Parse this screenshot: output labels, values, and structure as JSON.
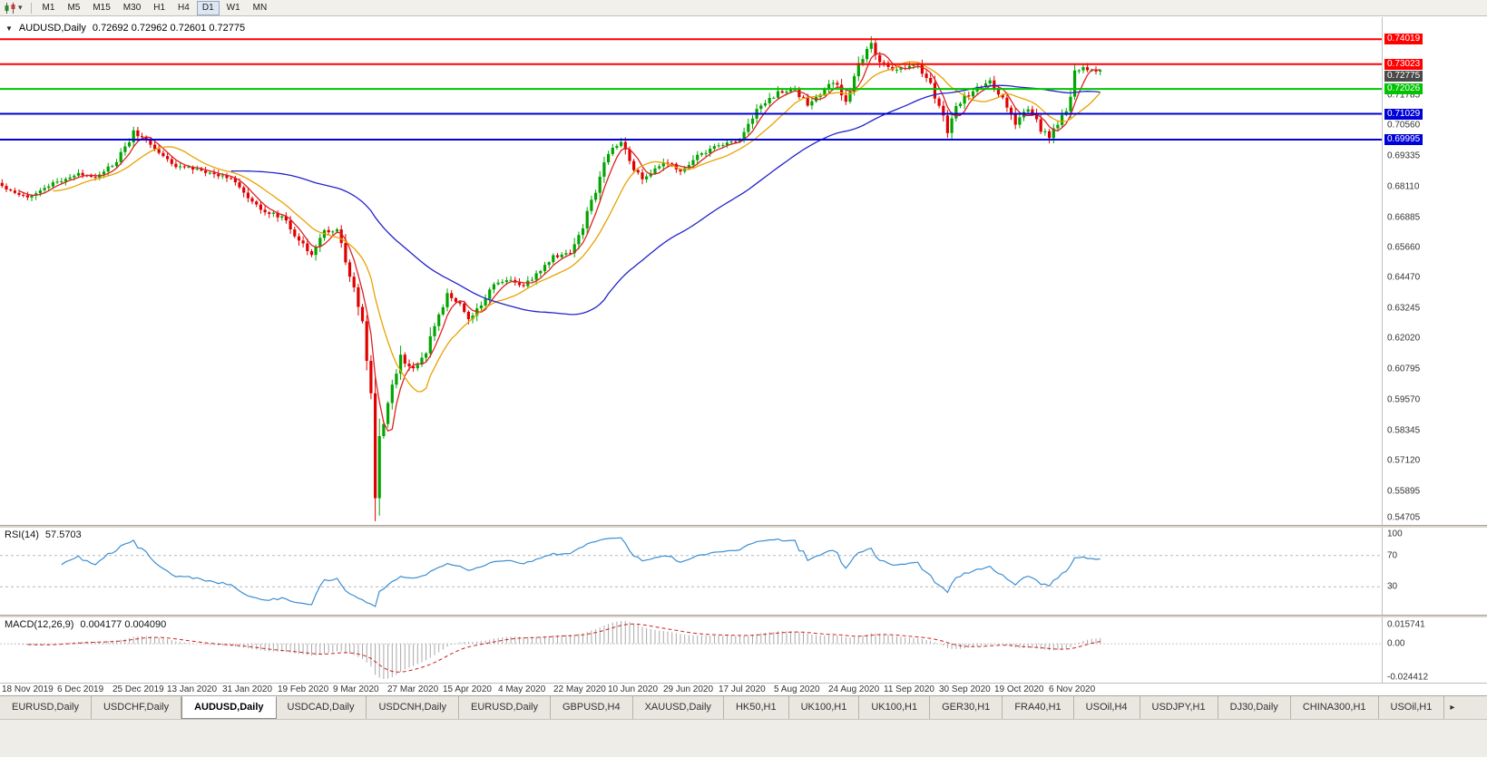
{
  "toolbar": {
    "timeframes": [
      "M1",
      "M5",
      "M15",
      "M30",
      "H1",
      "H4",
      "D1",
      "W1",
      "MN"
    ],
    "active_timeframe": "D1"
  },
  "main_chart": {
    "title_symbol": "AUDUSD,Daily",
    "title_ohlc": "0.72692 0.72962 0.72601 0.72775",
    "y_axis_labels": [
      "0.71785",
      "0.70560",
      "0.69335",
      "0.68110",
      "0.66885",
      "0.65660",
      "0.64470",
      "0.63245",
      "0.62020",
      "0.60795",
      "0.59570",
      "0.58345",
      "0.57120",
      "0.55895",
      "0.54705"
    ],
    "levels": [
      {
        "price": "0.74019",
        "value": 0.74019,
        "color": "#ff0000"
      },
      {
        "price": "0.73023",
        "value": 0.73023,
        "color": "#ff0000"
      },
      {
        "price": "0.72026",
        "value": 0.72026,
        "color": "#00c400"
      },
      {
        "price": "0.71029",
        "value": 0.71029,
        "color": "#0000d8"
      },
      {
        "price": "0.69995",
        "value": 0.69995,
        "color": "#0000d8"
      }
    ],
    "current_price": {
      "label": "0.72775",
      "value": 0.72775,
      "tag_color": "#4a4a4a"
    },
    "x_axis_labels": [
      "18 Nov 2019",
      "6 Dec 2019",
      "25 Dec 2019",
      "13 Jan 2020",
      "31 Jan 2020",
      "19 Feb 2020",
      "9 Mar 2020",
      "27 Mar 2020",
      "15 Apr 2020",
      "4 May 2020",
      "22 May 2020",
      "10 Jun 2020",
      "29 Jun 2020",
      "17 Jul 2020",
      "5 Aug 2020",
      "24 Aug 2020",
      "11 Sep 2020",
      "30 Sep 2020",
      "19 Oct 2020",
      "6 Nov 2020"
    ]
  },
  "rsi_panel": {
    "title": "RSI(14)",
    "value": "57.5703",
    "axis_labels": [
      "100",
      "70",
      "30"
    ],
    "upper_level": 70,
    "lower_level": 30
  },
  "macd_panel": {
    "title": "MACD(12,26,9)",
    "values": "0.004177 0.004090",
    "axis_top": "0.015741",
    "axis_zero": "0.00",
    "axis_bottom": "-0.024412"
  },
  "tabs": {
    "items": [
      "EURUSD,Daily",
      "USDCHF,Daily",
      "AUDUSD,Daily",
      "USDCAD,Daily",
      "USDCNH,Daily",
      "EURUSD,Daily",
      "GBPUSD,H4",
      "XAUUSD,Daily",
      "HK50,H1",
      "UK100,H1",
      "UK100,H1",
      "GER30,H1",
      "FRA40,H1",
      "USOil,H4",
      "USDJPY,H1",
      "DJ30,Daily",
      "CHINA300,H1",
      "USOil,H1"
    ],
    "active_index": 2,
    "scroll_right_icon": "▸"
  },
  "chart_data": {
    "type": "candlestick",
    "symbol": "AUDUSD",
    "timeframe": "Daily",
    "title": "AUDUSD,Daily",
    "last_open": 0.72692,
    "last_high": 0.72962,
    "last_low": 0.72601,
    "last_close": 0.72775,
    "bars": 260,
    "ylim": [
      0.5455,
      0.749
    ],
    "price_path_anchors": [
      [
        0,
        0.6812
      ],
      [
        3,
        0.6788
      ],
      [
        6,
        0.6772
      ],
      [
        10,
        0.6805
      ],
      [
        14,
        0.6838
      ],
      [
        18,
        0.686
      ],
      [
        22,
        0.6852
      ],
      [
        27,
        0.6908
      ],
      [
        31,
        0.7028
      ],
      [
        34,
        0.6998
      ],
      [
        40,
        0.6898
      ],
      [
        45,
        0.6882
      ],
      [
        50,
        0.686
      ],
      [
        54,
        0.6848
      ],
      [
        58,
        0.6758
      ],
      [
        62,
        0.6712
      ],
      [
        66,
        0.6688
      ],
      [
        70,
        0.6598
      ],
      [
        73,
        0.6545
      ],
      [
        76,
        0.6628
      ],
      [
        79,
        0.664
      ],
      [
        81,
        0.65
      ],
      [
        83,
        0.639
      ],
      [
        85,
        0.627
      ],
      [
        87,
        0.598
      ],
      [
        88,
        0.555
      ],
      [
        89,
        0.58
      ],
      [
        91,
        0.594
      ],
      [
        94,
        0.6125
      ],
      [
        97,
        0.6075
      ],
      [
        100,
        0.615
      ],
      [
        103,
        0.629
      ],
      [
        105,
        0.6375
      ],
      [
        107,
        0.6355
      ],
      [
        110,
        0.6282
      ],
      [
        113,
        0.6335
      ],
      [
        116,
        0.6418
      ],
      [
        120,
        0.6438
      ],
      [
        123,
        0.6408
      ],
      [
        126,
        0.6462
      ],
      [
        130,
        0.6528
      ],
      [
        134,
        0.6545
      ],
      [
        137,
        0.6655
      ],
      [
        140,
        0.68
      ],
      [
        143,
        0.6948
      ],
      [
        146,
        0.7
      ],
      [
        148,
        0.6905
      ],
      [
        151,
        0.6845
      ],
      [
        154,
        0.6878
      ],
      [
        157,
        0.6912
      ],
      [
        160,
        0.6862
      ],
      [
        163,
        0.6922
      ],
      [
        166,
        0.6952
      ],
      [
        170,
        0.6982
      ],
      [
        174,
        0.6998
      ],
      [
        177,
        0.7098
      ],
      [
        180,
        0.7148
      ],
      [
        183,
        0.7188
      ],
      [
        187,
        0.7196
      ],
      [
        190,
        0.7142
      ],
      [
        193,
        0.7182
      ],
      [
        196,
        0.7232
      ],
      [
        199,
        0.7162
      ],
      [
        202,
        0.7292
      ],
      [
        205,
        0.7385
      ],
      [
        207,
        0.7312
      ],
      [
        210,
        0.7282
      ],
      [
        213,
        0.7288
      ],
      [
        216,
        0.7302
      ],
      [
        219,
        0.7222
      ],
      [
        223,
        0.7042
      ],
      [
        226,
        0.7158
      ],
      [
        229,
        0.7192
      ],
      [
        233,
        0.7238
      ],
      [
        236,
        0.7162
      ],
      [
        239,
        0.7072
      ],
      [
        242,
        0.7122
      ],
      [
        245,
        0.7042
      ],
      [
        247,
        0.7012
      ],
      [
        249,
        0.7058
      ],
      [
        251,
        0.7112
      ],
      [
        253,
        0.7258
      ],
      [
        255,
        0.7288
      ],
      [
        257,
        0.7272
      ],
      [
        259,
        0.72775
      ]
    ],
    "wick_low_extreme": {
      "index": 88,
      "low": 0.547
    },
    "wick_high_extreme": {
      "index": 205,
      "high": 0.7414
    },
    "horizontal_levels": [
      0.74019,
      0.73023,
      0.72026,
      0.71029,
      0.69995
    ],
    "moving_averages": [
      {
        "period": 5,
        "color": "#dd2222"
      },
      {
        "period": 13,
        "color": "#e8a200"
      },
      {
        "period": 55,
        "color": "#2222cc"
      }
    ],
    "indicators": [
      {
        "name": "RSI",
        "period": 14,
        "last_value": 57.5703,
        "levels": [
          70,
          30
        ],
        "color": "#3e8ed0"
      },
      {
        "name": "MACD",
        "fast": 12,
        "slow": 26,
        "signal": 9,
        "last_macd": 0.004177,
        "last_signal": 0.00409,
        "hist_color": "#a8a8a8",
        "signal_color": "#cc2222"
      }
    ],
    "candle_colors": {
      "bull": "#00a500",
      "bear": "#e00000"
    }
  }
}
